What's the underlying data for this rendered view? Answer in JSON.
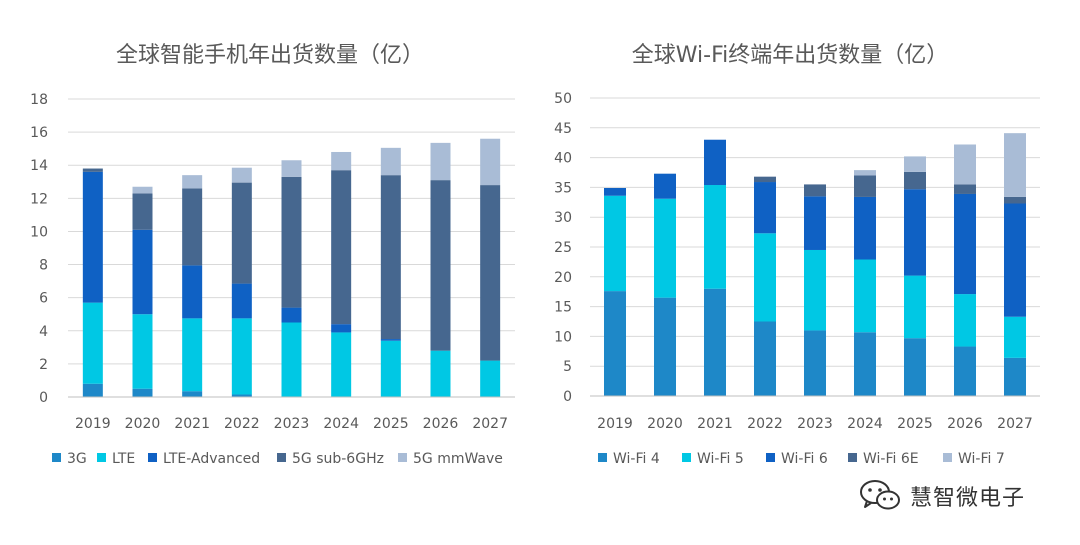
{
  "chart_data": [
    {
      "type": "bar",
      "stacked": true,
      "title": "全球智能手机年出货数量（亿）",
      "categories": [
        "2019",
        "2020",
        "2021",
        "2022",
        "2023",
        "2024",
        "2025",
        "2026",
        "2027"
      ],
      "ylim": [
        0,
        18
      ],
      "yticks": [
        0,
        2,
        4,
        6,
        8,
        10,
        12,
        14,
        16,
        18
      ],
      "grid": true,
      "legend_position": "bottom",
      "series": [
        {
          "name": "3G",
          "color": "#1E88C8",
          "values": [
            0.8,
            0.5,
            0.35,
            0.15,
            0,
            0,
            0,
            0,
            0
          ]
        },
        {
          "name": "LTE",
          "color": "#00C8E4",
          "values": [
            4.9,
            4.5,
            4.4,
            4.6,
            4.5,
            3.9,
            3.4,
            2.8,
            2.2
          ]
        },
        {
          "name": "LTE-Advanced",
          "color": "#0F61C4",
          "values": [
            7.9,
            5.1,
            3.2,
            2.1,
            0.9,
            0.5,
            0.1,
            0,
            0
          ]
        },
        {
          "name": "5G sub-6GHz",
          "color": "#46678F",
          "values": [
            0.2,
            2.2,
            4.65,
            6.1,
            7.9,
            9.3,
            9.9,
            10.3,
            10.6
          ]
        },
        {
          "name": "5G mmWave",
          "color": "#A9BCD6",
          "values": [
            0,
            0.4,
            0.8,
            0.9,
            1.0,
            1.1,
            1.65,
            2.25,
            2.8
          ]
        }
      ]
    },
    {
      "type": "bar",
      "stacked": true,
      "title": "全球Wi-Fi终端年出货数量（亿）",
      "categories": [
        "2019",
        "2020",
        "2021",
        "2022",
        "2023",
        "2024",
        "2025",
        "2026",
        "2027"
      ],
      "ylim": [
        0,
        50
      ],
      "yticks": [
        0,
        5,
        10,
        15,
        20,
        25,
        30,
        35,
        40,
        45,
        50
      ],
      "grid": true,
      "legend_position": "bottom",
      "series": [
        {
          "name": "Wi-Fi 4",
          "color": "#1E88C8",
          "values": [
            17.6,
            16.5,
            18.0,
            12.5,
            11.0,
            10.7,
            9.7,
            8.3,
            6.4
          ]
        },
        {
          "name": "Wi-Fi 5",
          "color": "#00C8E4",
          "values": [
            16.0,
            16.6,
            17.4,
            14.8,
            13.5,
            12.2,
            10.5,
            8.8,
            6.9
          ]
        },
        {
          "name": "Wi-Fi 6",
          "color": "#0F61C4",
          "values": [
            1.3,
            4.2,
            7.6,
            8.6,
            9.0,
            10.5,
            14.5,
            16.8,
            19.0
          ]
        },
        {
          "name": "Wi-Fi 6E",
          "color": "#46678F",
          "values": [
            0,
            0,
            0,
            0.9,
            2.0,
            3.6,
            2.9,
            1.6,
            1.1
          ]
        },
        {
          "name": "Wi-Fi 7",
          "color": "#A9BCD6",
          "values": [
            0,
            0,
            0,
            0,
            0,
            0.9,
            2.6,
            6.7,
            10.7
          ]
        }
      ]
    }
  ],
  "watermark": {
    "text": "慧智微电子",
    "icon": "wechat-icon"
  }
}
